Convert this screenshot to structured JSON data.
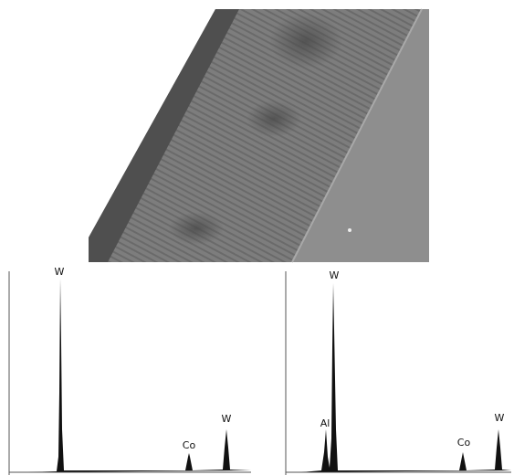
{
  "spectra": [
    {
      "peaks": [
        {
          "label": "W"
        },
        {
          "label": "Co"
        },
        {
          "label": "W"
        }
      ]
    },
    {
      "peaks": [
        {
          "label": "W"
        },
        {
          "label": "Al"
        },
        {
          "label": "Co"
        },
        {
          "label": "W"
        }
      ]
    }
  ]
}
